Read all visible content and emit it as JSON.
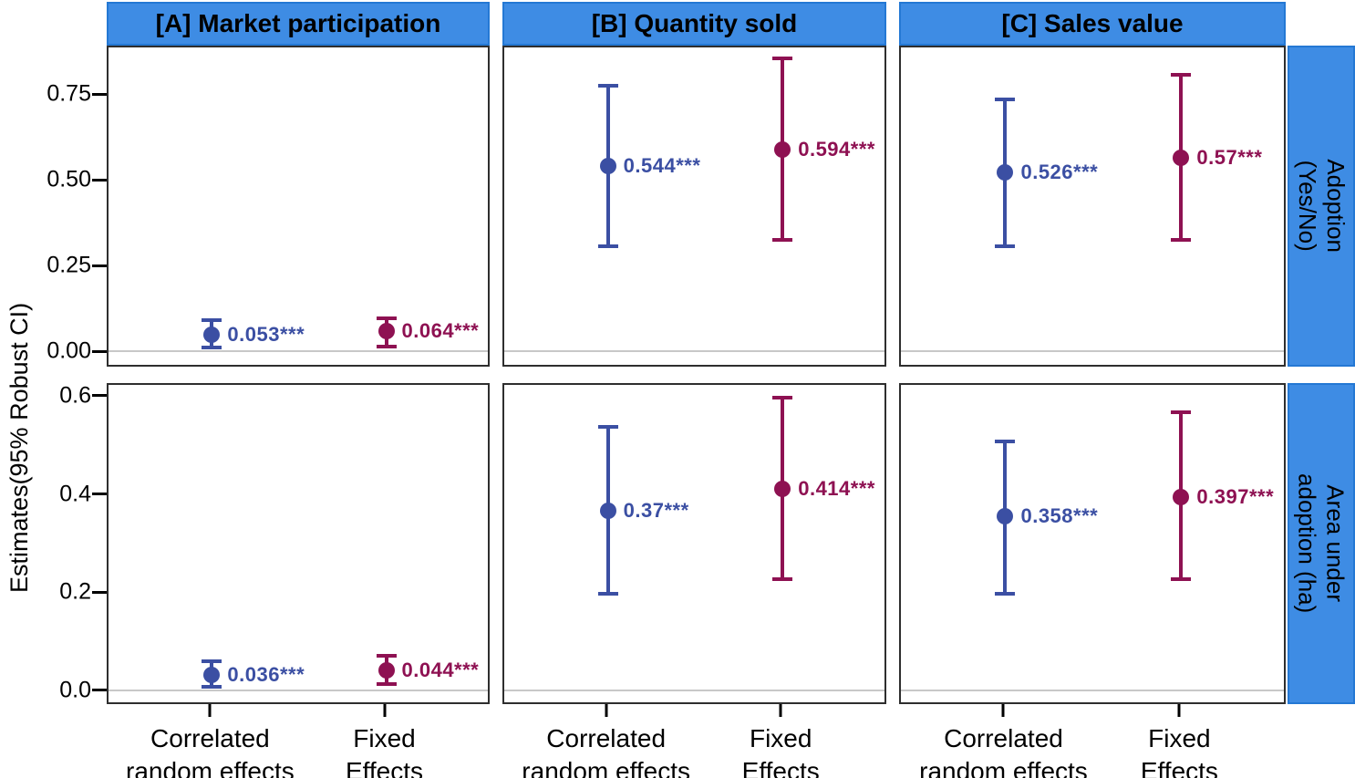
{
  "colors": {
    "strip_background": "#3E8CE4",
    "strip_border": "#2478d4",
    "panel_border": "#2e2e2e",
    "zero_line": "#c8c8c8",
    "cre_blue": "#3B4FA3",
    "fe_red": "#8E1152"
  },
  "chart_data": {
    "type": "errorbar",
    "title": "",
    "ylabel": "Estimates(95% Robust CI)",
    "grid": "off",
    "legend": "none",
    "facet_cols": [
      {
        "id": "A",
        "title": "[A] Market participation"
      },
      {
        "id": "B",
        "title": "[B] Quantity sold"
      },
      {
        "id": "C",
        "title": "[C] Sales value"
      }
    ],
    "facet_rows": [
      {
        "id": "adoption",
        "label_lines": [
          "Adoption",
          "(Yes/No)"
        ],
        "ylim": [
          -0.045,
          0.891
        ],
        "yticks": [
          {
            "value": 0.75,
            "label": "0.75"
          },
          {
            "value": 0.5,
            "label": "0.50"
          },
          {
            "value": 0.25,
            "label": "0.25"
          },
          {
            "value": 0.0,
            "label": "0.00"
          }
        ]
      },
      {
        "id": "area",
        "label_lines": [
          "Area under",
          "adoption (ha)"
        ],
        "ylim": [
          -0.028,
          0.626
        ],
        "yticks": [
          {
            "value": 0.6,
            "label": "0.6"
          },
          {
            "value": 0.4,
            "label": "0.4"
          },
          {
            "value": 0.2,
            "label": "0.2"
          },
          {
            "value": 0.0,
            "label": "0.0"
          }
        ]
      }
    ],
    "x_categories": [
      {
        "lines": [
          "Correlated",
          "random effects"
        ]
      },
      {
        "lines": [
          "Fixed",
          "Effects"
        ]
      }
    ],
    "series": [
      {
        "name": "Correlated random effects",
        "color": "#3B4FA3"
      },
      {
        "name": "Fixed Effects",
        "color": "#8E1152"
      }
    ],
    "zero_reference_line": 0,
    "points": [
      {
        "row": 0,
        "col": 0,
        "series": 0,
        "estimate": 0.053,
        "ci_low": 0.015,
        "ci_high": 0.095,
        "label": "0.053***"
      },
      {
        "row": 0,
        "col": 0,
        "series": 1,
        "estimate": 0.064,
        "ci_low": 0.02,
        "ci_high": 0.1,
        "label": "0.064***"
      },
      {
        "row": 0,
        "col": 1,
        "series": 0,
        "estimate": 0.544,
        "ci_low": 0.31,
        "ci_high": 0.78,
        "label": "0.544***"
      },
      {
        "row": 0,
        "col": 1,
        "series": 1,
        "estimate": 0.594,
        "ci_low": 0.33,
        "ci_high": 0.86,
        "label": "0.594***"
      },
      {
        "row": 0,
        "col": 2,
        "series": 0,
        "estimate": 0.526,
        "ci_low": 0.31,
        "ci_high": 0.74,
        "label": "0.526***"
      },
      {
        "row": 0,
        "col": 2,
        "series": 1,
        "estimate": 0.57,
        "ci_low": 0.33,
        "ci_high": 0.81,
        "label": "0.57***"
      },
      {
        "row": 1,
        "col": 0,
        "series": 0,
        "estimate": 0.036,
        "ci_low": 0.011,
        "ci_high": 0.063,
        "label": "0.036***"
      },
      {
        "row": 1,
        "col": 0,
        "series": 1,
        "estimate": 0.044,
        "ci_low": 0.017,
        "ci_high": 0.074,
        "label": "0.044***"
      },
      {
        "row": 1,
        "col": 1,
        "series": 0,
        "estimate": 0.37,
        "ci_low": 0.2,
        "ci_high": 0.54,
        "label": "0.37***"
      },
      {
        "row": 1,
        "col": 1,
        "series": 1,
        "estimate": 0.414,
        "ci_low": 0.23,
        "ci_high": 0.6,
        "label": "0.414***"
      },
      {
        "row": 1,
        "col": 2,
        "series": 0,
        "estimate": 0.358,
        "ci_low": 0.2,
        "ci_high": 0.51,
        "label": "0.358***"
      },
      {
        "row": 1,
        "col": 2,
        "series": 1,
        "estimate": 0.397,
        "ci_low": 0.23,
        "ci_high": 0.57,
        "label": "0.397***"
      }
    ]
  }
}
